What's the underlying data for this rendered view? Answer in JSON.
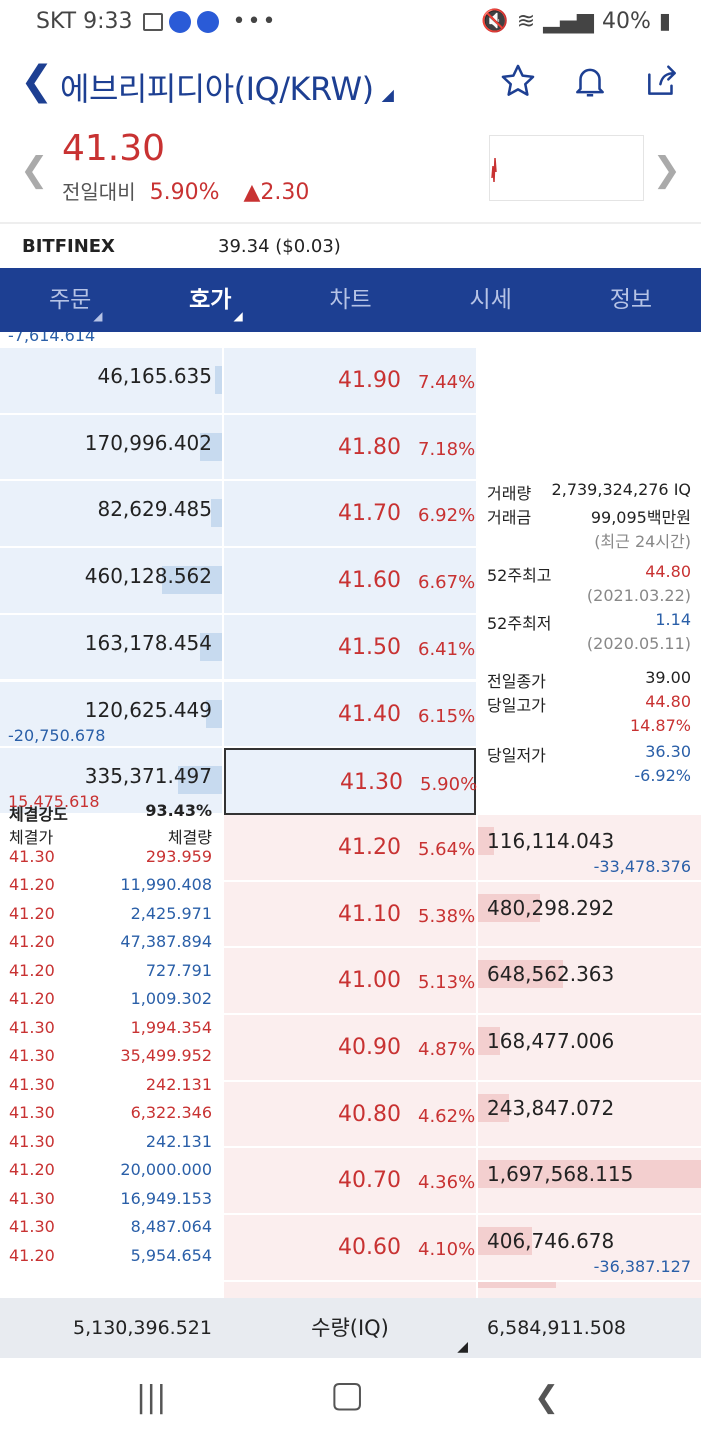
{
  "status": {
    "carrier": "SKT",
    "time": "9:33",
    "battery": "40%"
  },
  "header": {
    "title": "에브리피디아(IQ/KRW)"
  },
  "price": {
    "current": "41.30",
    "compare_label": "전일대비",
    "pct": "5.90%",
    "change": "2.30"
  },
  "exchange": {
    "name": "BITFINEX",
    "value": "39.34 ($0.03)"
  },
  "tabs": [
    "주문",
    "호가",
    "차트",
    "시세",
    "정보"
  ],
  "asks": [
    {
      "qty": "46,165.635",
      "price": "41.90",
      "pct": "7.44%",
      "fill": 0.03
    },
    {
      "qty": "170,996.402",
      "price": "41.80",
      "pct": "7.18%",
      "fill": 0.1
    },
    {
      "qty": "82,629.485",
      "price": "41.70",
      "pct": "6.92%",
      "fill": 0.05
    },
    {
      "qty": "460,128.562",
      "price": "41.60",
      "pct": "6.67%",
      "fill": 0.27
    },
    {
      "qty": "163,178.454",
      "price": "41.50",
      "pct": "6.41%",
      "fill": 0.1
    },
    {
      "qty": "120,625.449",
      "price": "41.40",
      "pct": "6.15%",
      "fill": 0.07,
      "delta": "-20,750.678"
    },
    {
      "qty": "335,371.497",
      "price": "41.30",
      "pct": "5.90%",
      "fill": 0.2,
      "delta": "15,475.618"
    }
  ],
  "top_delta": "-7,614.614",
  "bids": [
    {
      "qty": "116,114.043",
      "price": "41.20",
      "pct": "5.64%",
      "fill": 0.07,
      "delta": "-33,478.376"
    },
    {
      "qty": "480,298.292",
      "price": "41.10",
      "pct": "5.38%",
      "fill": 0.28
    },
    {
      "qty": "648,562.363",
      "price": "41.00",
      "pct": "5.13%",
      "fill": 0.38
    },
    {
      "qty": "168,477.006",
      "price": "40.90",
      "pct": "4.87%",
      "fill": 0.1
    },
    {
      "qty": "243,847.072",
      "price": "40.80",
      "pct": "4.62%",
      "fill": 0.14
    },
    {
      "qty": "1,697,568.115",
      "price": "40.70",
      "pct": "4.36%",
      "fill": 1.0
    },
    {
      "qty": "406,746.678",
      "price": "40.60",
      "pct": "4.10%",
      "fill": 0.24,
      "delta": "-36,387.127"
    }
  ],
  "info": {
    "vol_label": "거래량",
    "vol": "2,739,324,276 IQ",
    "amt_label": "거래금",
    "amt": "99,095백만원",
    "recent": "(최근 24시간)",
    "hi52_label": "52주최고",
    "hi52": "44.80",
    "hi52_date": "(2021.03.22)",
    "lo52_label": "52주최저",
    "lo52": "1.14",
    "lo52_date": "(2020.05.11)",
    "prev_close_label": "전일종가",
    "prev_close": "39.00",
    "day_high_label": "당일고가",
    "day_high": "44.80",
    "day_high_pct": "14.87%",
    "day_low_label": "당일저가",
    "day_low": "36.30",
    "day_low_pct": "-6.92%"
  },
  "trades": {
    "strength_label": "체결강도",
    "strength": "93.43%",
    "price_label": "체결가",
    "qty_label": "체결량",
    "rows": [
      {
        "p": "41.30",
        "q": "293.959",
        "c": "red"
      },
      {
        "p": "41.20",
        "q": "11,990.408",
        "c": "blue"
      },
      {
        "p": "41.20",
        "q": "2,425.971",
        "c": "blue"
      },
      {
        "p": "41.20",
        "q": "47,387.894",
        "c": "blue"
      },
      {
        "p": "41.20",
        "q": "727.791",
        "c": "blue"
      },
      {
        "p": "41.20",
        "q": "1,009.302",
        "c": "blue"
      },
      {
        "p": "41.30",
        "q": "1,994.354",
        "c": "red"
      },
      {
        "p": "41.30",
        "q": "35,499.952",
        "c": "red"
      },
      {
        "p": "41.30",
        "q": "242.131",
        "c": "red"
      },
      {
        "p": "41.30",
        "q": "6,322.346",
        "c": "red"
      },
      {
        "p": "41.30",
        "q": "242.131",
        "c": "blue"
      },
      {
        "p": "41.20",
        "q": "20,000.000",
        "c": "blue"
      },
      {
        "p": "41.30",
        "q": "16,949.153",
        "c": "blue"
      },
      {
        "p": "41.30",
        "q": "8,487.064",
        "c": "blue"
      },
      {
        "p": "41.20",
        "q": "5,954.654",
        "c": "blue"
      }
    ]
  },
  "footer": {
    "ask_total": "5,130,396.521",
    "unit": "수량(IQ)",
    "bid_total": "6,584,911.508"
  }
}
